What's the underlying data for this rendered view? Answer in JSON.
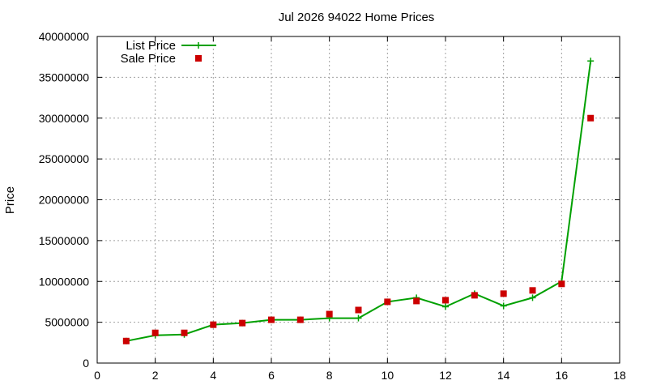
{
  "chart_data": {
    "type": "line",
    "title": "Jul 2026 94022 Home Prices",
    "xlabel": "",
    "ylabel": "Price",
    "xlim": [
      0,
      18
    ],
    "ylim": [
      0,
      40000000
    ],
    "xticks": [
      0,
      2,
      4,
      6,
      8,
      10,
      12,
      14,
      16,
      18
    ],
    "yticks": [
      0,
      5000000,
      10000000,
      15000000,
      20000000,
      25000000,
      30000000,
      35000000,
      40000000
    ],
    "grid": true,
    "legend_position": "top-left",
    "series": [
      {
        "name": "List Price",
        "style": "line+cross",
        "color": "#00a000",
        "x": [
          1,
          2,
          3,
          4,
          5,
          6,
          7,
          8,
          9,
          10,
          11,
          12,
          13,
          14,
          15,
          16,
          17
        ],
        "values": [
          2700000,
          3400000,
          3500000,
          4700000,
          4900000,
          5300000,
          5300000,
          5500000,
          5500000,
          7500000,
          8000000,
          6900000,
          8500000,
          7000000,
          8000000,
          10000000,
          37000000
        ]
      },
      {
        "name": "Sale Price",
        "style": "square",
        "color": "#cc0000",
        "x": [
          1,
          2,
          3,
          4,
          5,
          6,
          7,
          8,
          9,
          10,
          11,
          12,
          13,
          14,
          15,
          16,
          17
        ],
        "values": [
          2700000,
          3700000,
          3700000,
          4700000,
          4900000,
          5300000,
          5300000,
          6000000,
          6500000,
          7500000,
          7600000,
          7700000,
          8300000,
          8500000,
          8900000,
          9700000,
          30000000
        ]
      }
    ]
  }
}
